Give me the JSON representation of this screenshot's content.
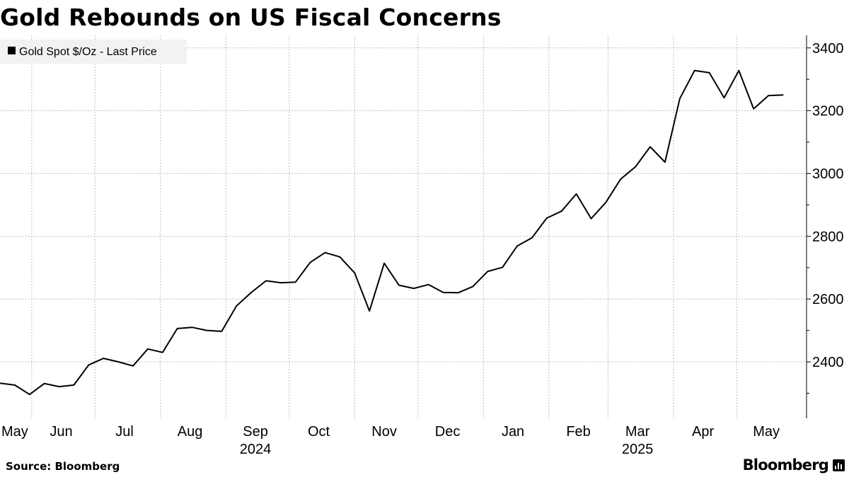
{
  "title": "Gold Rebounds on US Fiscal Concerns",
  "source": "Source: Bloomberg",
  "brand": "Bloomberg",
  "brand_icon": "bloomberg-terminal-icon",
  "colors": {
    "line": "#000000",
    "grid": "#bfbfbf",
    "legend_bg": "#f2f2f2"
  },
  "chart_data": {
    "type": "line",
    "title": "Gold Rebounds on US Fiscal Concerns",
    "legend_position": "top-left",
    "grid": true,
    "y_axis_side": "right",
    "ylim": [
      2220,
      3440
    ],
    "yticks": [
      2400,
      2600,
      2800,
      3000,
      3200,
      3400
    ],
    "xlim": [
      "2024-05-17",
      "2025-05-23"
    ],
    "month_labels": [
      "May",
      "Jun",
      "Jul",
      "Aug",
      "Sep",
      "Oct",
      "Nov",
      "Dec",
      "Jan",
      "Feb",
      "Mar",
      "Apr",
      "May"
    ],
    "year_labels": [
      "2024",
      "2025"
    ],
    "series": [
      {
        "name": "Gold Spot $/Oz - Last Price",
        "x": [
          "2024-05-17",
          "2024-05-24",
          "2024-05-31",
          "2024-06-07",
          "2024-06-14",
          "2024-06-21",
          "2024-06-28",
          "2024-07-05",
          "2024-07-12",
          "2024-07-19",
          "2024-07-26",
          "2024-08-02",
          "2024-08-09",
          "2024-08-16",
          "2024-08-23",
          "2024-08-30",
          "2024-09-06",
          "2024-09-13",
          "2024-09-20",
          "2024-09-27",
          "2024-10-04",
          "2024-10-11",
          "2024-10-18",
          "2024-10-25",
          "2024-11-01",
          "2024-11-08",
          "2024-11-15",
          "2024-11-22",
          "2024-11-29",
          "2024-12-06",
          "2024-12-13",
          "2024-12-20",
          "2024-12-27",
          "2025-01-03",
          "2025-01-10",
          "2025-01-17",
          "2025-01-24",
          "2025-01-31",
          "2025-02-07",
          "2025-02-14",
          "2025-02-21",
          "2025-02-28",
          "2025-03-07",
          "2025-03-14",
          "2025-03-21",
          "2025-03-28",
          "2025-04-04",
          "2025-04-11",
          "2025-04-18",
          "2025-04-25",
          "2025-05-02",
          "2025-05-09",
          "2025-05-16",
          "2025-05-23"
        ],
        "values": [
          2332,
          2326,
          2296,
          2331,
          2321,
          2326,
          2390,
          2411,
          2400,
          2387,
          2441,
          2430,
          2506,
          2510,
          2500,
          2497,
          2578,
          2621,
          2658,
          2652,
          2654,
          2717,
          2748,
          2734,
          2683,
          2562,
          2714,
          2644,
          2634,
          2646,
          2621,
          2620,
          2640,
          2688,
          2701,
          2769,
          2795,
          2858,
          2880,
          2935,
          2856,
          2908,
          2982,
          3021,
          3085,
          3036,
          3238,
          3328,
          3321,
          3241,
          3328,
          3206,
          3248,
          3250
        ]
      }
    ]
  }
}
